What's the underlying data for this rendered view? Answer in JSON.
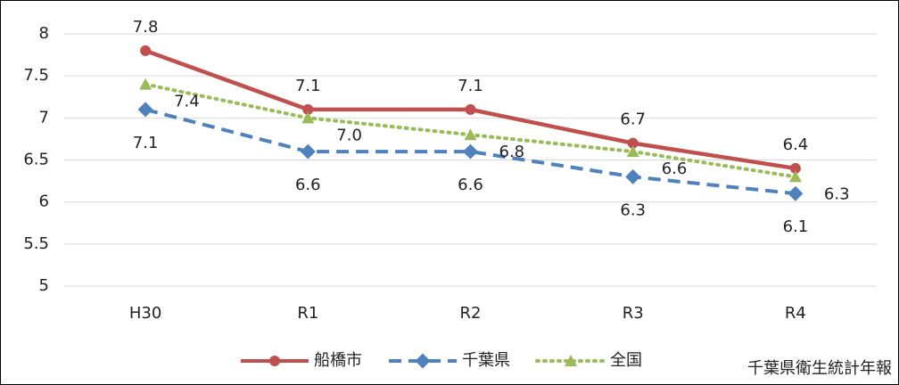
{
  "chart_data": {
    "type": "line",
    "categories": [
      "H30",
      "R1",
      "R2",
      "R3",
      "R4"
    ],
    "series": [
      {
        "name": "船橋市",
        "color": "#c0504d",
        "values": [
          7.8,
          7.1,
          7.1,
          6.7,
          6.4
        ]
      },
      {
        "name": "千葉県",
        "color": "#4f81bd",
        "values": [
          7.1,
          6.6,
          6.6,
          6.3,
          6.1
        ]
      },
      {
        "name": "全国",
        "color": "#9bbb59",
        "values": [
          7.4,
          7,
          6.8,
          6.6,
          6.3
        ],
        "value_labels": [
          "7.4",
          "7.0",
          "6.8",
          "6.6",
          "6.3"
        ]
      }
    ],
    "ylim": [
      5,
      8
    ],
    "yticks": [
      5,
      5.5,
      6,
      6.5,
      7,
      7.5,
      8
    ],
    "grid": true,
    "legend": "bottom",
    "source": "千葉県衛生統計年報"
  }
}
